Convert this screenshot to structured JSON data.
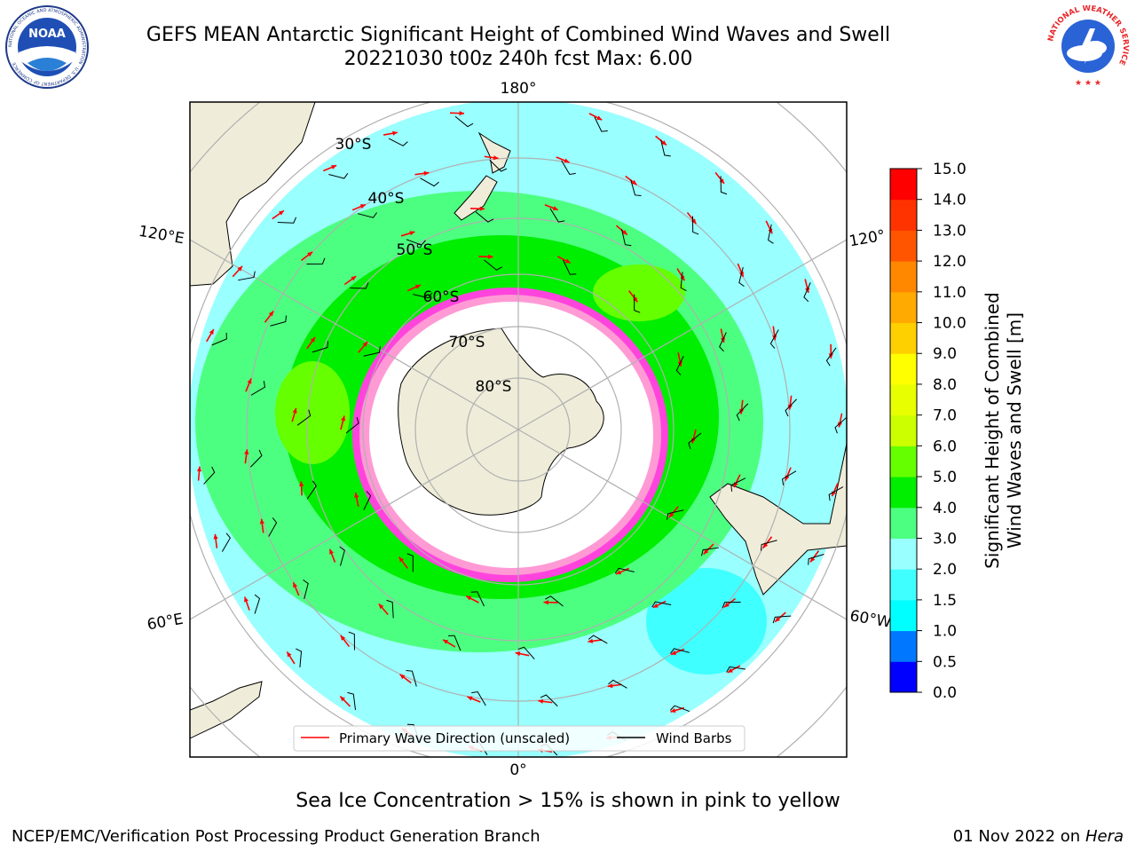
{
  "title_line1": "GEFS MEAN Antarctic Significant Height of Combined Wind Waves and Swell",
  "title_line2": "20221030 t00z 240h fcst   Max: 6.00",
  "noaa_logo_text": "NOAA",
  "noaa_ring_text": "NATIONAL OCEANIC AND ATMOSPHERIC ADMINISTRATION · U.S. DEPARTMENT OF COMMERCE",
  "nws_ring_text": "NATIONAL WEATHER SERVICE",
  "map": {
    "longitude_labels": {
      "top": "180°",
      "bottom": "0°",
      "upper_left": "120°E",
      "lower_left": "60°E",
      "upper_right": "120°",
      "lower_right": "60°W"
    },
    "latitude_labels": [
      "30°S",
      "40°S",
      "50°S",
      "60°S",
      "70°S",
      "80°S"
    ],
    "legend": {
      "wave_direction": "Primary Wave Direction (unscaled)",
      "wind_barbs": "Wind Barbs"
    },
    "wave_direction_color": "#ff0000",
    "land_color": "#efedd9",
    "max_wave_height_m": 6.0
  },
  "colorbar": {
    "label_line1": "Significant Height of Combined",
    "label_line2": "Wind Waves and Swell [m]",
    "ticks": [
      "0.0",
      "0.5",
      "1.0",
      "1.5",
      "2.0",
      "3.0",
      "4.0",
      "5.0",
      "6.0",
      "7.0",
      "8.0",
      "9.0",
      "10.0",
      "11.0",
      "12.0",
      "13.0",
      "14.0",
      "15.0"
    ],
    "colors": [
      "#0000ff",
      "#0077ff",
      "#00ffff",
      "#40ffff",
      "#99ffff",
      "#4dff80",
      "#00ee00",
      "#66ff00",
      "#ccff00",
      "#e8ff00",
      "#ffff00",
      "#ffd000",
      "#ffaa00",
      "#ff8800",
      "#ff5500",
      "#ff3300",
      "#ff0000"
    ]
  },
  "caption": "Sea Ice Concentration > 15% is shown in pink to yellow",
  "footer_left": "NCEP/EMC/Verification Post Processing Product Generation Branch",
  "footer_right_date": "01 Nov 2022 on",
  "footer_right_host": "Hera"
}
